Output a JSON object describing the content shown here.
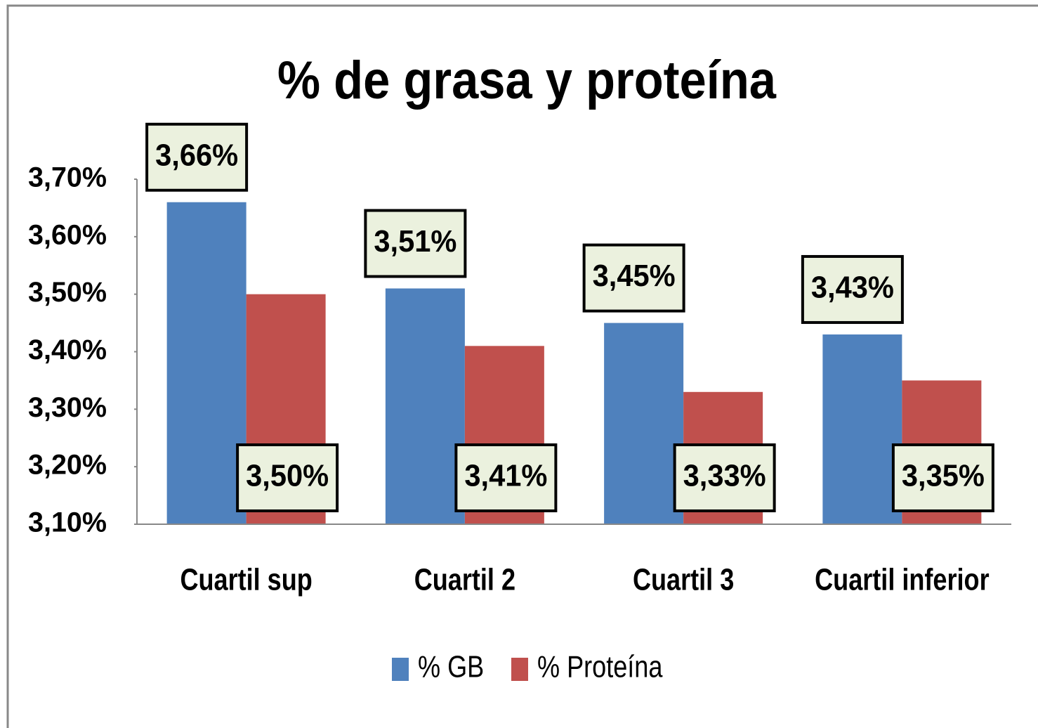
{
  "chart_data": {
    "type": "bar",
    "title": "% de grasa y proteína",
    "categories": [
      "Cuartil sup",
      "Cuartil 2",
      "Cuartil 3",
      "Cuartil inferior"
    ],
    "series": [
      {
        "name": "% GB",
        "color": "#4f81bd",
        "values": [
          3.66,
          3.51,
          3.45,
          3.43
        ],
        "value_labels": [
          "3,66%",
          "3,51%",
          "3,45%",
          "3,43%"
        ]
      },
      {
        "name": "% Proteína",
        "color": "#c0504d",
        "values": [
          3.5,
          3.41,
          3.33,
          3.35
        ],
        "value_labels": [
          "3,50%",
          "3,41%",
          "3,33%",
          "3,35%"
        ]
      }
    ],
    "ylim": [
      3.1,
      3.7
    ],
    "yticks": [
      {
        "value": 3.1,
        "label": "3,10%"
      },
      {
        "value": 3.2,
        "label": "3,20%"
      },
      {
        "value": 3.3,
        "label": "3,30%"
      },
      {
        "value": 3.4,
        "label": "3,40%"
      },
      {
        "value": 3.5,
        "label": "3,50%"
      },
      {
        "value": 3.6,
        "label": "3,60%"
      },
      {
        "value": 3.7,
        "label": "3,70%"
      }
    ],
    "legend": "bottom"
  }
}
